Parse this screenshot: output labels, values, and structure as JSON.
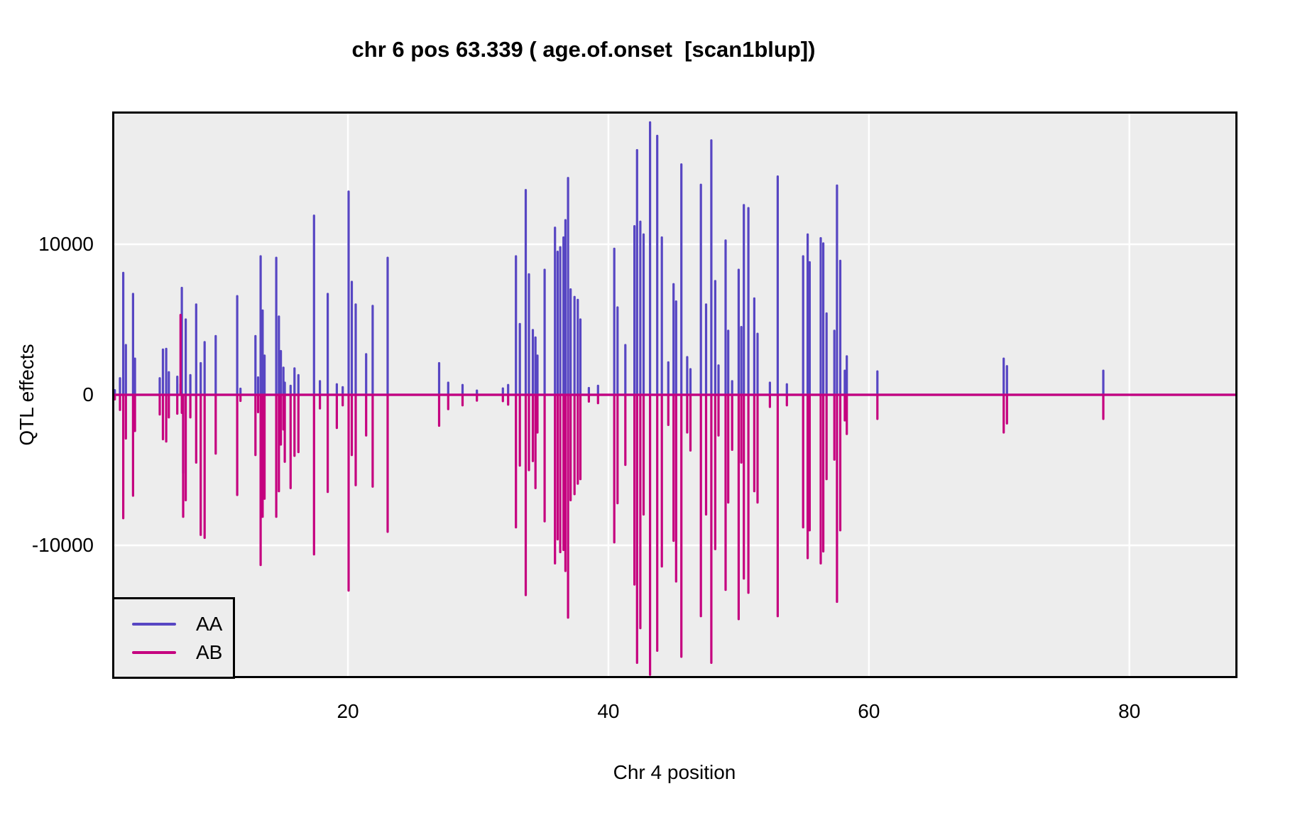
{
  "title": "chr 6 pos 63.339 ( age.of.onset  [scan1blup])",
  "y_axis": {
    "label": "QTL effects",
    "tick_labels": [
      "-10000",
      "0",
      "10000"
    ]
  },
  "x_axis": {
    "label": "Chr 4 position",
    "tick_labels": [
      "20",
      "40",
      "60",
      "80"
    ]
  },
  "legend": {
    "entries": [
      {
        "label": "AA",
        "color": "#5746C3"
      },
      {
        "label": "AB",
        "color": "#C5017F"
      }
    ]
  },
  "colors": {
    "aa_line": "#5746C3",
    "ab_line": "#C5017F",
    "plot_background": "#EDEDED",
    "gridline": "#FFFFFF",
    "border": "#000000",
    "text": "#000000"
  },
  "chart_data": {
    "type": "line",
    "title": "chr 6 pos 63.339 ( age.of.onset  [scan1blup])",
    "xlabel": "Chr 4 position",
    "ylabel": "QTL effects",
    "xlim": [
      1.9,
      88.3
    ],
    "ylim": [
      -18820,
      18820
    ],
    "x_ticks": [
      20,
      40,
      60,
      80
    ],
    "y_ticks": [
      -10000,
      0,
      10000
    ],
    "grid": true,
    "legend_position": "bottom-left",
    "baseline": 0,
    "series": [
      {
        "name": "AA",
        "color": "#5746C3"
      },
      {
        "name": "AB",
        "color": "#C5017F"
      }
    ],
    "encoding": "spikes = [x, AA effect, AB effect]; both series are ~0 between spikes",
    "spikes": [
      [
        2.1,
        300,
        -300
      ],
      [
        2.5,
        1100,
        -1000
      ],
      [
        2.75,
        8100,
        -8200
      ],
      [
        2.95,
        3300,
        -2900
      ],
      [
        3.5,
        6700,
        -6700
      ],
      [
        3.65,
        2400,
        -2400
      ],
      [
        5.55,
        1100,
        -1300
      ],
      [
        5.8,
        3000,
        -2950
      ],
      [
        6.05,
        3050,
        -3100
      ],
      [
        6.25,
        1500,
        -1500
      ],
      [
        6.9,
        1200,
        -1250
      ],
      [
        7.15,
        700,
        5300
      ],
      [
        7.25,
        7100,
        -1200
      ],
      [
        7.35,
        -5200,
        -8100
      ],
      [
        7.55,
        5000,
        -7000
      ],
      [
        7.9,
        1300,
        -1500
      ],
      [
        8.35,
        6000,
        -4500
      ],
      [
        8.7,
        2100,
        -9300
      ],
      [
        9.0,
        3500,
        -9500
      ],
      [
        9.85,
        3900,
        -3900
      ],
      [
        11.5,
        6550,
        -6650
      ],
      [
        11.75,
        400,
        -400
      ],
      [
        12.9,
        3900,
        -4000
      ],
      [
        13.1,
        1150,
        -1150
      ],
      [
        13.3,
        9200,
        -11300
      ],
      [
        13.45,
        5600,
        -8100
      ],
      [
        13.6,
        2600,
        -6900
      ],
      [
        14.5,
        9100,
        -8100
      ],
      [
        14.7,
        5200,
        -6400
      ],
      [
        14.85,
        2900,
        -3300
      ],
      [
        15.05,
        1800,
        -2300
      ],
      [
        15.15,
        800,
        -4450
      ],
      [
        15.6,
        600,
        -6200
      ],
      [
        15.9,
        1750,
        -4050
      ],
      [
        16.2,
        1300,
        -3800
      ],
      [
        17.4,
        11900,
        -10600
      ],
      [
        17.85,
        900,
        -900
      ],
      [
        18.45,
        6700,
        -6450
      ],
      [
        19.15,
        700,
        -2200
      ],
      [
        19.6,
        500,
        -700
      ],
      [
        20.05,
        13500,
        -13000
      ],
      [
        20.3,
        7500,
        -4000
      ],
      [
        20.6,
        6000,
        -6000
      ],
      [
        21.4,
        2700,
        -2700
      ],
      [
        21.9,
        5900,
        -6100
      ],
      [
        23.05,
        9100,
        -9100
      ],
      [
        27.0,
        2100,
        -2050
      ],
      [
        27.7,
        800,
        -950
      ],
      [
        28.8,
        650,
        -700
      ],
      [
        29.9,
        280,
        -380
      ],
      [
        31.9,
        420,
        -420
      ],
      [
        32.3,
        650,
        -650
      ],
      [
        32.9,
        9200,
        -8800
      ],
      [
        33.2,
        4700,
        -4700
      ],
      [
        33.65,
        13600,
        -13300
      ],
      [
        33.9,
        8000,
        -5000
      ],
      [
        34.2,
        4300,
        -4400
      ],
      [
        34.4,
        3800,
        -6200
      ],
      [
        34.55,
        2600,
        -2500
      ],
      [
        35.1,
        8300,
        -8400
      ],
      [
        35.9,
        11100,
        -11200
      ],
      [
        36.1,
        9500,
        -9600
      ],
      [
        36.3,
        9800,
        -10450
      ],
      [
        36.55,
        10450,
        -10300
      ],
      [
        36.7,
        11600,
        -11700
      ],
      [
        36.9,
        14400,
        -14800
      ],
      [
        37.1,
        7000,
        -7000
      ],
      [
        37.4,
        6500,
        -6600
      ],
      [
        37.65,
        6300,
        -5900
      ],
      [
        37.85,
        5000,
        -5600
      ],
      [
        38.5,
        450,
        -450
      ],
      [
        39.2,
        600,
        -550
      ],
      [
        40.45,
        9700,
        -9800
      ],
      [
        40.7,
        5800,
        -7200
      ],
      [
        41.3,
        3300,
        -4650
      ],
      [
        42.0,
        11200,
        -12600
      ],
      [
        42.2,
        16250,
        -17800
      ],
      [
        42.45,
        11500,
        -15500
      ],
      [
        42.7,
        10650,
        -7950
      ],
      [
        43.2,
        18100,
        -18600
      ],
      [
        43.75,
        17200,
        -17000
      ],
      [
        44.1,
        10450,
        -11400
      ],
      [
        44.6,
        2150,
        -2000
      ],
      [
        45.0,
        7350,
        -9700
      ],
      [
        45.2,
        6200,
        -12400
      ],
      [
        45.6,
        15300,
        -17400
      ],
      [
        46.05,
        2500,
        -2500
      ],
      [
        46.3,
        1700,
        -3700
      ],
      [
        47.1,
        13950,
        -14700
      ],
      [
        47.5,
        6000,
        -7950
      ],
      [
        47.9,
        16900,
        -17800
      ],
      [
        48.2,
        7550,
        -10250
      ],
      [
        48.45,
        1950,
        -2700
      ],
      [
        49.0,
        10250,
        -12950
      ],
      [
        49.2,
        4250,
        -7150
      ],
      [
        49.5,
        900,
        -3650
      ],
      [
        50.0,
        8300,
        -14900
      ],
      [
        50.2,
        4500,
        -4500
      ],
      [
        50.4,
        12600,
        -12200
      ],
      [
        50.75,
        12400,
        -13150
      ],
      [
        51.2,
        6400,
        -6400
      ],
      [
        51.45,
        4050,
        -7150
      ],
      [
        52.4,
        800,
        -800
      ],
      [
        53.0,
        14500,
        -14700
      ],
      [
        53.7,
        700,
        -700
      ],
      [
        54.95,
        9200,
        -8800
      ],
      [
        55.3,
        10650,
        -10850
      ],
      [
        55.45,
        8800,
        -9000
      ],
      [
        56.3,
        10400,
        -11200
      ],
      [
        56.5,
        10050,
        -10400
      ],
      [
        56.75,
        5400,
        -5600
      ],
      [
        57.35,
        4250,
        -4300
      ],
      [
        57.55,
        13900,
        -13750
      ],
      [
        57.8,
        8900,
        -9000
      ],
      [
        58.15,
        1600,
        -1700
      ],
      [
        58.3,
        2550,
        -2600
      ],
      [
        60.65,
        1550,
        -1600
      ],
      [
        70.35,
        2400,
        -2500
      ],
      [
        70.6,
        1900,
        -1900
      ],
      [
        78.0,
        1600,
        -1600
      ]
    ]
  }
}
